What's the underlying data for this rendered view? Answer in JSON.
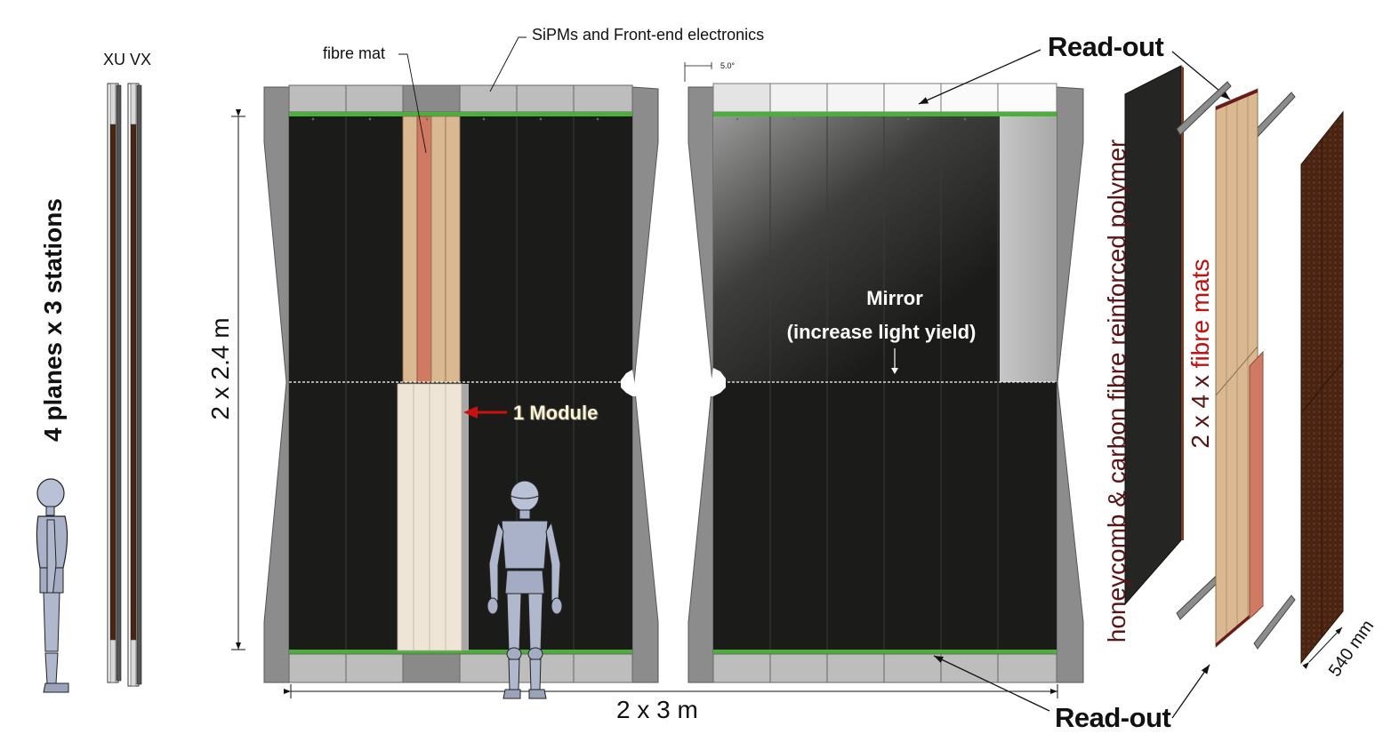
{
  "labels": {
    "fibre_mat": "fibre mat",
    "sipm": "SiPMs and Front-end electronics",
    "xuvx": "XU VX",
    "angle": "5.0°",
    "planes": "4 planes x 3 stations",
    "height": "2 x 2.4 m",
    "width": "2 x 3 m",
    "readout_top": "Read-out",
    "readout_bottom": "Read-out",
    "mirror": "Mirror",
    "mirror_sub": "(increase light yield)",
    "module": "1 Module",
    "honeycomb": "honeycomb & carbon fibre reinforced polymer",
    "mats_count": "2 x 4 x",
    "mats_word": "fibre mats",
    "depth": "540 mm"
  },
  "colors": {
    "panel_dark": "#1b1c1a",
    "frame_grey": "#8c8c8c",
    "readout_box": "#bdbdbd",
    "green_strip": "#4caf3a",
    "fibre_tan": "#d9b892",
    "fibre_red": "#d17a63",
    "module_cream": "#efe5d6",
    "arrow_red": "#cc1010",
    "honeycomb_label": "#5a1414",
    "fibre_label": "#c01010",
    "carbon_brown": "#4a2412",
    "figure_silver": "#a9b2c8"
  },
  "icons": [
    "humanoid-figure-icon",
    "red-arrow-icon"
  ]
}
